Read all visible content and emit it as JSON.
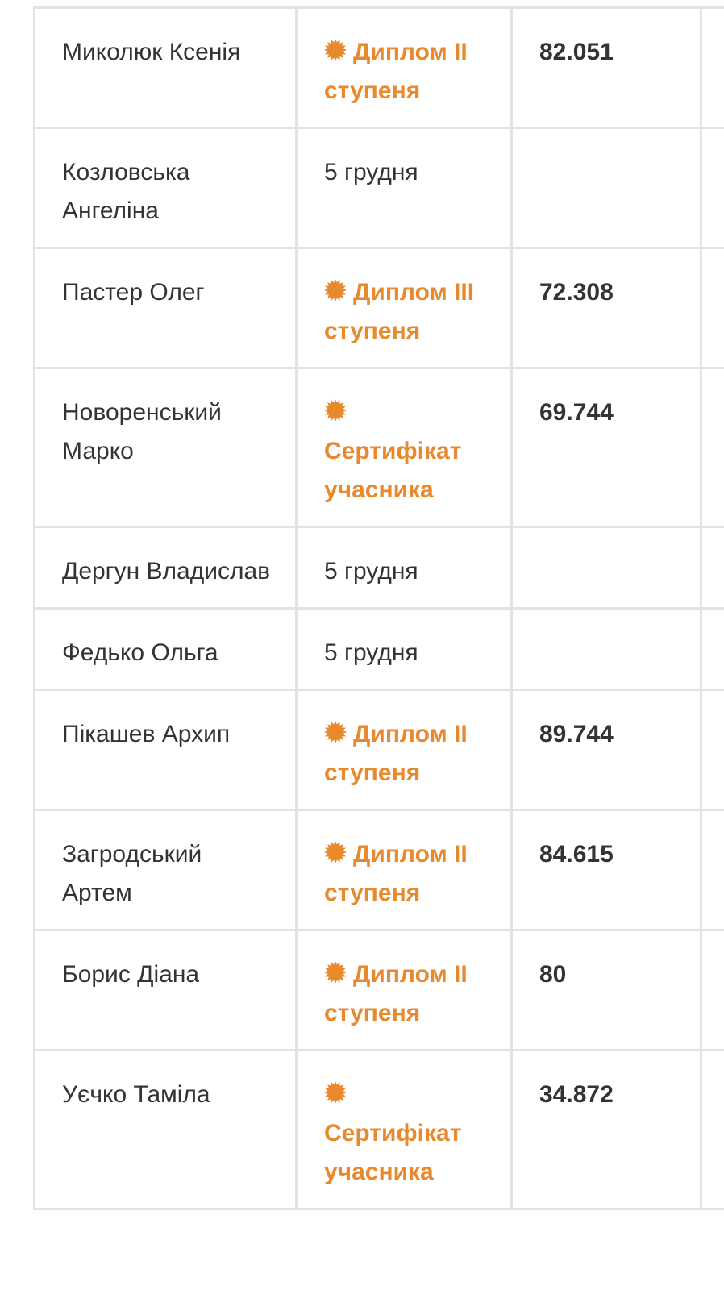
{
  "accent_color": "#e8892e",
  "rows": [
    {
      "name": "Миколюк Ксенія",
      "result": "Диплом ІІ ступеня",
      "award": true,
      "score": "82.051"
    },
    {
      "name": "Козловська Ангеліна",
      "result": "5 грудня",
      "award": false,
      "score": ""
    },
    {
      "name": "Пастер Олег",
      "result": "Диплом ІІІ ступеня",
      "award": true,
      "score": "72.308"
    },
    {
      "name": "Новоренський Марко",
      "result": "Сертифікат учасника",
      "award": true,
      "score": "69.744"
    },
    {
      "name": "Дергун Владислав",
      "result": "5 грудня",
      "award": false,
      "score": ""
    },
    {
      "name": "Федько Ольга",
      "result": "5 грудня",
      "award": false,
      "score": ""
    },
    {
      "name": "Пікашев Архип",
      "result": "Диплом ІІ ступеня",
      "award": true,
      "score": "89.744"
    },
    {
      "name": "Загродський Артем",
      "result": "Диплом ІІ ступеня",
      "award": true,
      "score": "84.615"
    },
    {
      "name": "Борис Діана",
      "result": "Диплом ІІ ступеня",
      "award": true,
      "score": "80"
    },
    {
      "name": "Уєчко Таміла",
      "result": "Сертифікат учасника",
      "award": true,
      "score": "34.872"
    }
  ]
}
